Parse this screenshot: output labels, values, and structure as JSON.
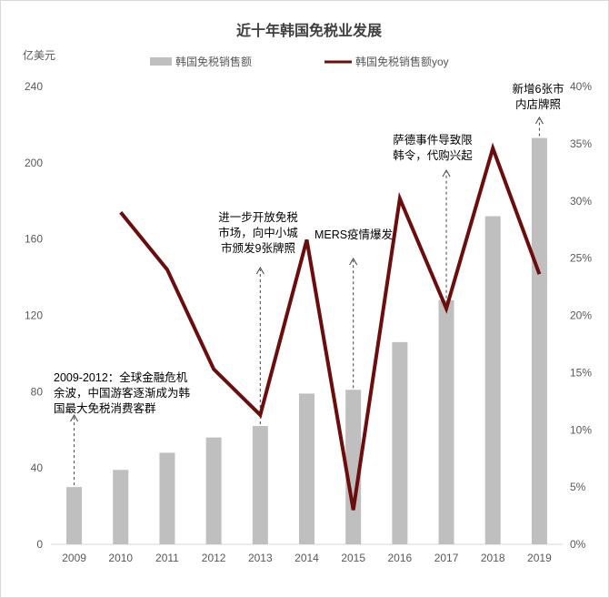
{
  "chart_data": {
    "type": "bar+line",
    "title": "近十年韩国免税业发展",
    "left_axis_unit": "亿美元",
    "categories": [
      "2009",
      "2010",
      "2011",
      "2012",
      "2013",
      "2014",
      "2015",
      "2016",
      "2017",
      "2018",
      "2019"
    ],
    "series": [
      {
        "name": "韩国免税销售额",
        "type": "bar",
        "axis": "left",
        "color": "#bfbfbf",
        "values": [
          30,
          39,
          48,
          56,
          62,
          79,
          81,
          106,
          128,
          172,
          213
        ]
      },
      {
        "name": "韩国免税销售额yoy",
        "type": "line",
        "axis": "right",
        "color": "#6b0d0d",
        "values": [
          null,
          29.0,
          24.0,
          15.3,
          11.3,
          26.6,
          3.0,
          30.2,
          20.6,
          34.6,
          23.6
        ]
      }
    ],
    "left_axis": {
      "min": 0,
      "max": 240,
      "ticks": [
        0,
        40,
        80,
        120,
        160,
        200,
        240
      ]
    },
    "right_axis": {
      "min": 0,
      "max": 40,
      "ticks": [
        "0%",
        "5%",
        "10%",
        "15%",
        "20%",
        "25%",
        "30%",
        "35%",
        "40%"
      ]
    },
    "grid": false,
    "legend": "top",
    "annotations": [
      {
        "category": "2009",
        "lines": [
          "2009-2012：全球金融危机",
          "余波，中国游客逐渐成为韩",
          "国最大免税消费客群"
        ]
      },
      {
        "category": "2013",
        "lines": [
          "进一步开放免税",
          "市场，向中小城",
          "市颁发9张牌照"
        ]
      },
      {
        "category": "2015",
        "lines": [
          "MERS疫情爆发"
        ]
      },
      {
        "category": "2017",
        "lines": [
          "萨德事件导致限",
          "韩令，代购兴起"
        ]
      },
      {
        "category": "2019",
        "lines": [
          "新增6张市",
          "内店牌照"
        ]
      }
    ]
  }
}
